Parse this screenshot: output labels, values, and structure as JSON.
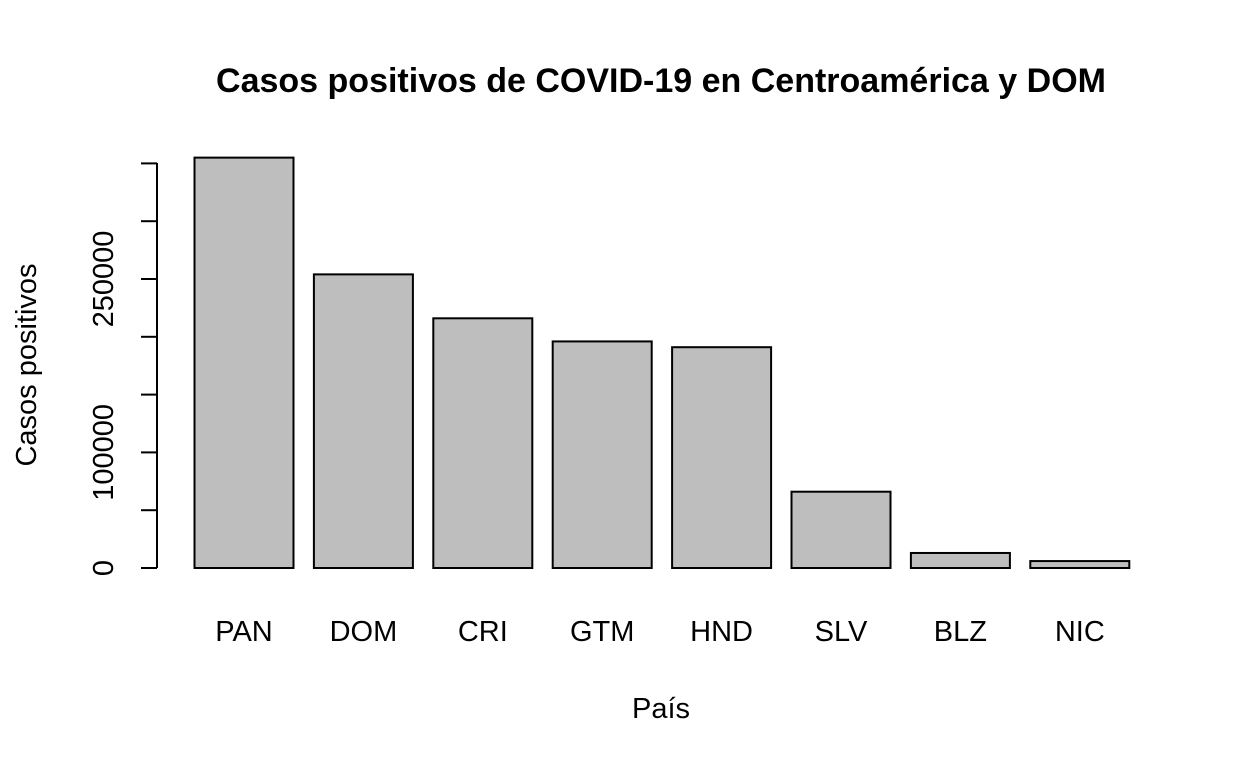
{
  "chart_data": {
    "type": "bar",
    "title": "Casos positivos de COVID-19 en Centroamérica y DOM",
    "xlabel": "País",
    "ylabel": "Casos positivos",
    "categories": [
      "PAN",
      "DOM",
      "CRI",
      "GTM",
      "HND",
      "SLV",
      "BLZ",
      "NIC"
    ],
    "values": [
      355000,
      254000,
      216000,
      196000,
      191000,
      66000,
      13000,
      6000
    ],
    "ylim": [
      0,
      350000
    ],
    "yticks": [
      0,
      50000,
      100000,
      150000,
      200000,
      250000,
      300000,
      350000
    ],
    "ytick_labels": [
      "0",
      "",
      "100000",
      "",
      "",
      "250000",
      "",
      ""
    ],
    "bar_color": "#bebebe",
    "grid": false,
    "legend": "none"
  }
}
